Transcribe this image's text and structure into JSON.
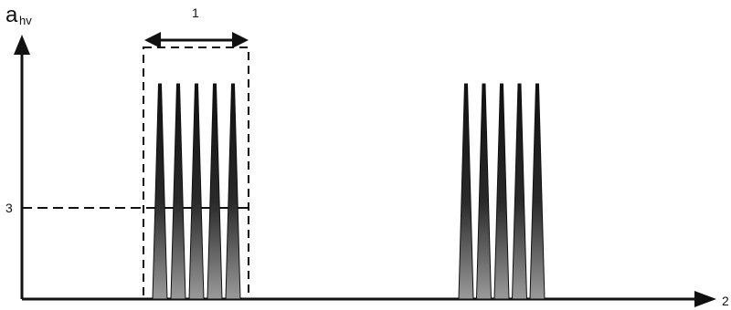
{
  "labels": {
    "y_axis_main": "a",
    "y_axis_sub": "hv",
    "x_axis": "2",
    "width_marker": "1",
    "level_marker": "3"
  },
  "pulse_groups": [
    {
      "name": "first-burst",
      "pulse_count": 5
    },
    {
      "name": "second-burst",
      "pulse_count": 5
    }
  ],
  "colors": {
    "ink": "#111111",
    "spike_fill": "#1a1a1a",
    "spike_base": "#8c8c8c"
  }
}
